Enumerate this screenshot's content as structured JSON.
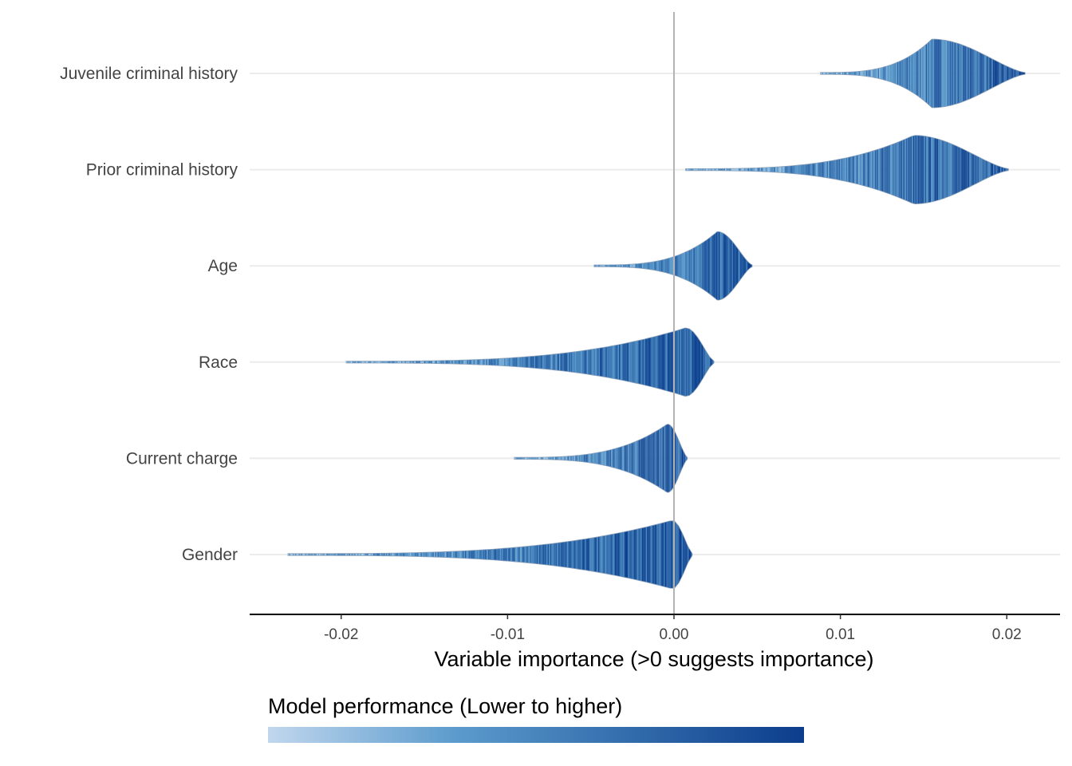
{
  "chart_data": {
    "type": "violin",
    "title": "",
    "xlabel": "Variable importance (>0 suggests importance)",
    "ylabel": "",
    "xlim": [
      -0.0255,
      0.0232
    ],
    "x_ticks": [
      -0.02,
      -0.01,
      0.0,
      0.01,
      0.02
    ],
    "x_tick_labels": [
      "-0.02",
      "-0.01",
      "0.00",
      "0.01",
      "0.02"
    ],
    "reference_line_x": 0.0,
    "grid": "horizontal",
    "legend": {
      "title": "Model performance (Lower to higher)",
      "placement": "bottom",
      "color_low": "#c1d7ee",
      "color_mid": "#5b9bcc",
      "color_high": "#0b3d8c"
    },
    "categories": [
      "Juvenile criminal history",
      "Prior criminal history",
      "Age",
      "Race",
      "Current charge",
      "Gender"
    ],
    "series": [
      {
        "name": "Juvenile criminal history",
        "min": 0.0088,
        "max": 0.0211,
        "peak": 0.0155
      },
      {
        "name": "Prior criminal history",
        "min": 0.0007,
        "max": 0.0201,
        "peak": 0.0144
      },
      {
        "name": "Age",
        "min": -0.0048,
        "max": 0.0047,
        "peak": 0.0026
      },
      {
        "name": "Race",
        "min": -0.0197,
        "max": 0.0024,
        "peak": 0.0007
      },
      {
        "name": "Current charge",
        "min": -0.0096,
        "max": 0.0008,
        "peak": -0.0004
      },
      {
        "name": "Gender",
        "min": -0.0232,
        "max": 0.0011,
        "peak": -0.0001
      }
    ]
  }
}
